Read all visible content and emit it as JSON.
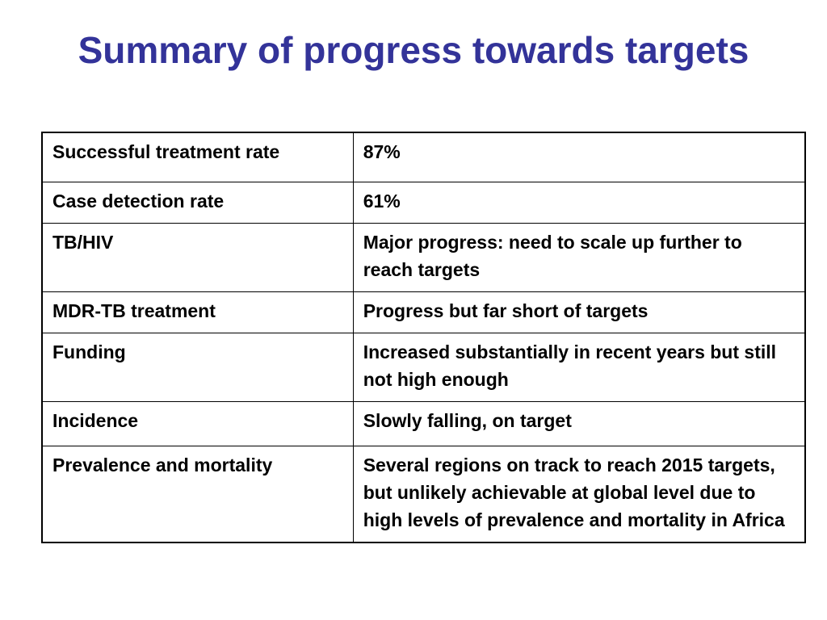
{
  "slide": {
    "title": "Summary of progress towards targets"
  },
  "table": {
    "rows": [
      {
        "label": "Successful treatment rate",
        "value": "87%"
      },
      {
        "label": "Case detection rate",
        "value": "61%"
      },
      {
        "label": "TB/HIV",
        "value": "Major progress: need to scale up further to reach targets"
      },
      {
        "label": "MDR-TB treatment",
        "value": "Progress but far short of targets"
      },
      {
        "label": "Funding",
        "value": "Increased substantially in recent years but still not high enough"
      },
      {
        "label": "Incidence",
        "value": "Slowly falling, on target"
      },
      {
        "label": "Prevalence and mortality",
        "value": "Several regions on track to reach 2015 targets, but unlikely achievable at global level due to high levels of prevalence and mortality in Africa"
      }
    ]
  },
  "colors": {
    "title": "#333399",
    "text": "#000000",
    "border": "#000000",
    "background": "#ffffff"
  }
}
